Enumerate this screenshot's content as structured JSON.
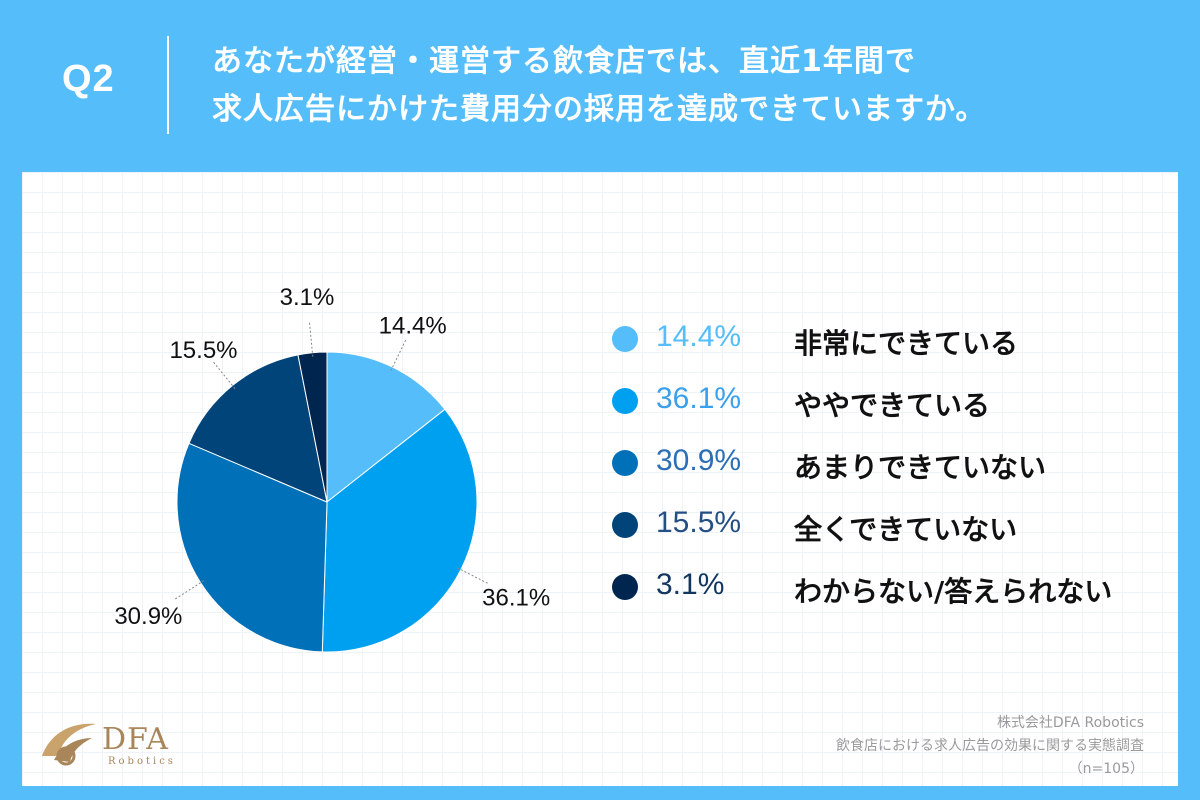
{
  "header": {
    "question_label": "Q2",
    "question_line1": "あなたが経営・運営する飲食店では、直近1年間で",
    "question_line2": "求人広告にかけた費用分の採用を達成できていますか。"
  },
  "chart_data": {
    "type": "pie",
    "unit": "%",
    "slices": [
      {
        "label": "非常にできている",
        "value": 14.4,
        "value_label": "14.4%",
        "color": "#55bdf9"
      },
      {
        "label": "ややできている",
        "value": 36.1,
        "value_label": "36.1%",
        "color": "#00a0f0"
      },
      {
        "label": "あまりできていない",
        "value": 30.9,
        "value_label": "30.9%",
        "color": "#0070b8"
      },
      {
        "label": "全くできていない",
        "value": 15.5,
        "value_label": "15.5%",
        "color": "#00447a"
      },
      {
        "label": "わからない/答えられない",
        "value": 3.1,
        "value_label": "3.1%",
        "color": "#00264f"
      }
    ],
    "legend_placement": "right",
    "legend_pct_colors": [
      "#55bdf9",
      "#3aa0ec",
      "#2c6fb6",
      "#234f84",
      "#12365f"
    ]
  },
  "logo": {
    "name": "DFA",
    "sub": "Robotics"
  },
  "credit": {
    "company": "株式会社DFA Robotics",
    "survey": "飲食店における求人広告の効果に関する実態調査",
    "sample": "（n=105）"
  }
}
